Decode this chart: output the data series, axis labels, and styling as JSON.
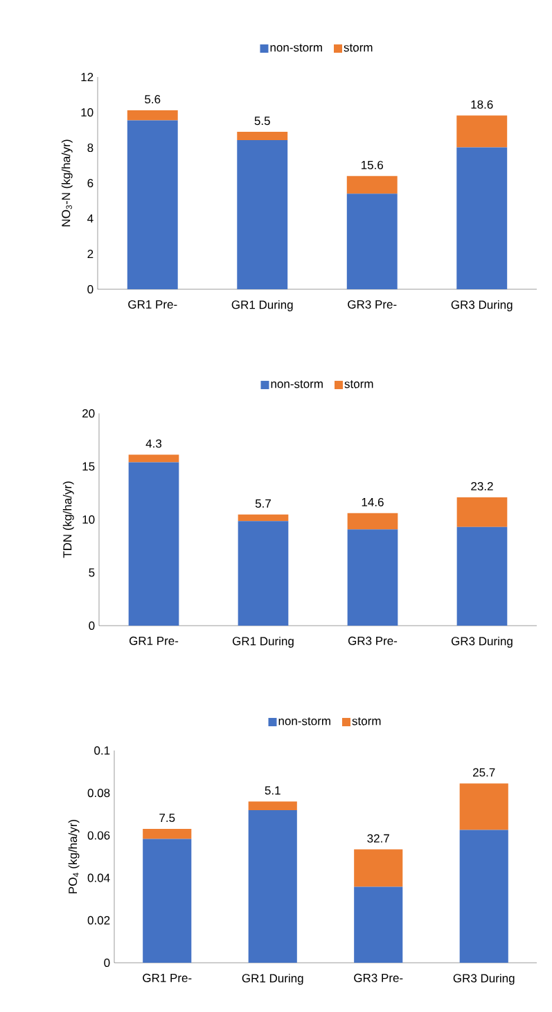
{
  "chart_data": [
    {
      "type": "bar",
      "stacked": true,
      "ylabel": "NO$_{3}$-N (kg/ha/yr)",
      "categories": [
        "GR1 Pre-",
        "GR1 During",
        "GR3 Pre-",
        "GR3 During"
      ],
      "ylim": [
        0,
        12
      ],
      "yticks": [
        0,
        2,
        4,
        6,
        8,
        10,
        12
      ],
      "legend": "top",
      "series": [
        {
          "name": "non-storm",
          "color": "#4472c4",
          "values": [
            9.55,
            8.43,
            5.4,
            8.02
          ]
        },
        {
          "name": "storm",
          "color": "#ed7d31",
          "values": [
            0.57,
            0.47,
            1.0,
            1.8
          ]
        }
      ],
      "annotations": [
        {
          "text": "5.6",
          "x": "GR1 Pre-",
          "y": 10.12
        },
        {
          "text": "5.5",
          "x": "GR1 During",
          "y": 8.9
        },
        {
          "text": "15.6",
          "x": "GR3 Pre-",
          "y": 6.4
        },
        {
          "text": "18.6",
          "x": "GR3 During",
          "y": 9.82
        }
      ]
    },
    {
      "type": "bar",
      "stacked": true,
      "ylabel": "TDN (kg/ha/yr)",
      "categories": [
        "GR1 Pre-",
        "GR1 During",
        "GR3 Pre-",
        "GR3 During"
      ],
      "ylim": [
        0,
        20
      ],
      "yticks": [
        0,
        5,
        10,
        15,
        20
      ],
      "legend": "top",
      "series": [
        {
          "name": "non-storm",
          "color": "#4472c4",
          "values": [
            15.4,
            9.85,
            9.07,
            9.3
          ]
        },
        {
          "name": "storm",
          "color": "#ed7d31",
          "values": [
            0.72,
            0.62,
            1.53,
            2.8
          ]
        }
      ],
      "annotations": [
        {
          "text": "4.3",
          "x": "GR1 Pre-",
          "y": 16.12
        },
        {
          "text": "5.7",
          "x": "GR1 During",
          "y": 10.47
        },
        {
          "text": "14.6",
          "x": "GR3 Pre-",
          "y": 10.6
        },
        {
          "text": "23.2",
          "x": "GR3 During",
          "y": 12.1
        }
      ]
    },
    {
      "type": "bar",
      "stacked": true,
      "ylabel": "PO$_{4}$ (kg/ha/yr)",
      "categories": [
        "GR1 Pre-",
        "GR1 During",
        "GR3 Pre-",
        "GR3 During"
      ],
      "ylim": [
        0,
        0.1
      ],
      "yticks": [
        0,
        0.02,
        0.04,
        0.06,
        0.08,
        0.1
      ],
      "legend": "top",
      "series": [
        {
          "name": "non-storm",
          "color": "#4472c4",
          "values": [
            0.0583,
            0.0719,
            0.0358,
            0.0626
          ]
        },
        {
          "name": "storm",
          "color": "#ed7d31",
          "values": [
            0.0048,
            0.0041,
            0.0176,
            0.0219
          ]
        }
      ],
      "annotations": [
        {
          "text": "7.5",
          "x": "GR1 Pre-",
          "y": 0.0631
        },
        {
          "text": "5.1",
          "x": "GR1 During",
          "y": 0.076
        },
        {
          "text": "32.7",
          "x": "GR3 Pre-",
          "y": 0.0534
        },
        {
          "text": "25.7",
          "x": "GR3 During",
          "y": 0.0845
        }
      ]
    }
  ]
}
